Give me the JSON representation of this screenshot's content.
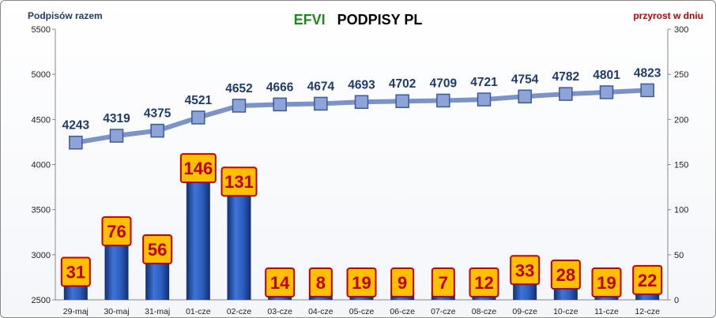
{
  "chart_data": {
    "type": "bar",
    "title_part1": "EFVI",
    "title_part2": "PODPISY PL",
    "ylabel_left": "Podpisów razem",
    "ylabel_right": "przyrost w dniu",
    "categories": [
      "29-maj",
      "30-maj",
      "31-maj",
      "01-cze",
      "02-cze",
      "03-cze",
      "04-cze",
      "05-cze",
      "06-cze",
      "07-cze",
      "08-cze",
      "09-cze",
      "10-cze",
      "11-cze",
      "12-cze"
    ],
    "series": [
      {
        "name": "przyrost w dniu",
        "type": "bar",
        "axis": "right",
        "values": [
          31,
          76,
          56,
          146,
          131,
          14,
          8,
          19,
          9,
          7,
          12,
          33,
          28,
          19,
          22
        ]
      },
      {
        "name": "Podpisów razem",
        "type": "line",
        "axis": "left",
        "values": [
          4243,
          4319,
          4375,
          4521,
          4652,
          4666,
          4674,
          4693,
          4702,
          4709,
          4721,
          4754,
          4782,
          4801,
          4823
        ]
      }
    ],
    "ylim_left": [
      2500,
      5500
    ],
    "yticks_left": [
      2500,
      3000,
      3500,
      4000,
      4500,
      5000,
      5500
    ],
    "ylim_right": [
      0,
      300
    ],
    "yticks_right": [
      0,
      50,
      100,
      150,
      200,
      250,
      300
    ],
    "grid": false,
    "colors": {
      "title1": "#1e8a1e",
      "title2": "#000000",
      "left_label": "#1f3a6e",
      "right_label": "#c00000",
      "bar": "#1f4fa3",
      "line": "#7b93c9",
      "marker_fill": "#8ea3d6",
      "marker_stroke": "#3a5aa0",
      "line_label": "#1f3a6e",
      "bar_label_fill": "#ffc000",
      "bar_label_stroke": "#c00000",
      "bar_label_text": "#c00000"
    }
  }
}
